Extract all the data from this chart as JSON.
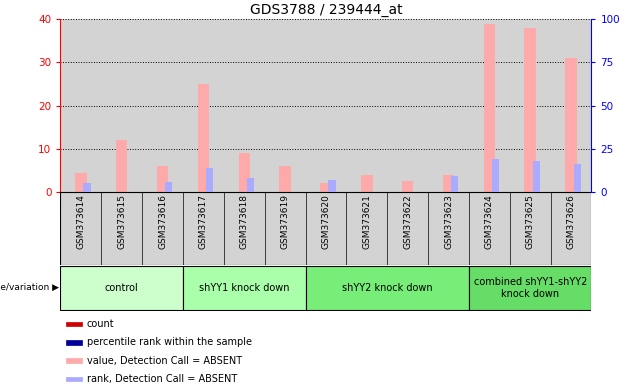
{
  "title": "GDS3788 / 239444_at",
  "samples": [
    "GSM373614",
    "GSM373615",
    "GSM373616",
    "GSM373617",
    "GSM373618",
    "GSM373619",
    "GSM373620",
    "GSM373621",
    "GSM373622",
    "GSM373623",
    "GSM373624",
    "GSM373625",
    "GSM373626"
  ],
  "count_values": [
    0,
    0,
    0,
    0,
    0,
    0,
    0,
    0,
    0,
    0,
    0,
    0,
    0
  ],
  "rank_values": [
    0,
    0,
    0,
    0,
    0,
    0,
    0,
    0,
    0,
    0,
    0,
    0,
    0
  ],
  "absent_value": [
    4.5,
    12.0,
    6.0,
    25.0,
    9.0,
    6.0,
    2.0,
    4.0,
    2.5,
    4.0,
    39.0,
    38.0,
    31.0
  ],
  "absent_rank": [
    5,
    0,
    6,
    14,
    8,
    0,
    7,
    0,
    0,
    9,
    19,
    18,
    16
  ],
  "groups": [
    {
      "label": "control",
      "start": 0,
      "end": 2,
      "color": "#ccffcc"
    },
    {
      "label": "shYY1 knock down",
      "start": 3,
      "end": 5,
      "color": "#aaffaa"
    },
    {
      "label": "shYY2 knock down",
      "start": 6,
      "end": 9,
      "color": "#77ee77"
    },
    {
      "label": "combined shYY1-shYY2\nknock down",
      "start": 10,
      "end": 12,
      "color": "#66dd66"
    }
  ],
  "ylim_left": [
    0,
    40
  ],
  "ylim_right": [
    0,
    100
  ],
  "yticks_left": [
    0,
    10,
    20,
    30,
    40
  ],
  "yticks_right": [
    0,
    25,
    50,
    75,
    100
  ],
  "count_color": "#cc0000",
  "rank_color": "#000099",
  "absent_val_color": "#ffaaaa",
  "absent_rank_color": "#aaaaff",
  "col_bg_color": "#d3d3d3",
  "legend_items": [
    {
      "label": "count",
      "color": "#cc0000"
    },
    {
      "label": "percentile rank within the sample",
      "color": "#000099"
    },
    {
      "label": "value, Detection Call = ABSENT",
      "color": "#ffaaaa"
    },
    {
      "label": "rank, Detection Call = ABSENT",
      "color": "#aaaaff"
    }
  ]
}
